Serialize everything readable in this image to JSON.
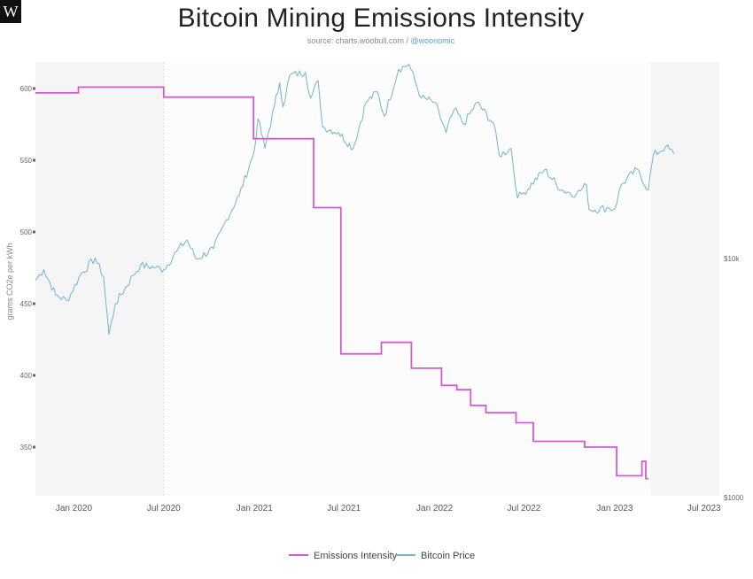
{
  "logo": {
    "text": "W"
  },
  "header": {
    "title": "Bitcoin Mining Emissions Intensity",
    "source_prefix": "source: charts.woobull.com /",
    "source_handle": "@woonomic"
  },
  "colors": {
    "emissions": "#d35bd1",
    "price": "#6fb6cc",
    "grid": "#eeeeee",
    "shade": "#f5f5f5"
  },
  "chart_data": {
    "type": "line",
    "title": "Bitcoin Mining Emissions Intensity",
    "ylabel": "grams CO2e per kWh",
    "ylim": [
      325,
      610
    ],
    "yticks": [
      350,
      400,
      450,
      500,
      550,
      600
    ],
    "y2ticks": [
      "$10k",
      "$1000"
    ],
    "x_range": [
      "2019-10-15",
      "2023-08-01"
    ],
    "x_ticks": [
      {
        "date": "2020-01-01",
        "label": "Jan 2020"
      },
      {
        "date": "2020-07-01",
        "label": "Jul 2020"
      },
      {
        "date": "2021-01-01",
        "label": "Jan 2021"
      },
      {
        "date": "2021-07-01",
        "label": "Jul 2021"
      },
      {
        "date": "2022-01-01",
        "label": "Jan 2022"
      },
      {
        "date": "2022-07-01",
        "label": "Jul 2022"
      },
      {
        "date": "2023-01-01",
        "label": "Jan 2023"
      },
      {
        "date": "2023-07-01",
        "label": "Jul 2023"
      }
    ],
    "grid": false,
    "legend": "bottom-center",
    "series": [
      {
        "name": "Emissions Intensity",
        "axis": "left",
        "step": true,
        "points": [
          [
            "2019-10-15",
            597
          ],
          [
            "2020-01-10",
            601
          ],
          [
            "2020-07-01",
            594
          ],
          [
            "2020-12-30",
            565
          ],
          [
            "2021-05-01",
            517
          ],
          [
            "2021-06-25",
            415
          ],
          [
            "2021-09-15",
            423
          ],
          [
            "2021-11-15",
            405
          ],
          [
            "2022-01-15",
            393
          ],
          [
            "2022-02-15",
            390
          ],
          [
            "2022-03-15",
            379
          ],
          [
            "2022-04-15",
            374
          ],
          [
            "2022-06-15",
            367
          ],
          [
            "2022-07-20",
            354
          ],
          [
            "2022-11-01",
            350
          ],
          [
            "2023-01-05",
            330
          ],
          [
            "2023-02-25",
            340
          ],
          [
            "2023-03-05",
            328
          ],
          [
            "2023-03-10",
            328
          ]
        ]
      },
      {
        "name": "Bitcoin Price",
        "axis": "right",
        "log_scale": true,
        "points": [
          [
            "2019-10-15",
            8300
          ],
          [
            "2019-11-01",
            9200
          ],
          [
            "2019-11-25",
            7200
          ],
          [
            "2019-12-18",
            6800
          ],
          [
            "2020-01-15",
            8800
          ],
          [
            "2020-02-13",
            10300
          ],
          [
            "2020-03-01",
            8600
          ],
          [
            "2020-03-12",
            4900
          ],
          [
            "2020-03-25",
            6600
          ],
          [
            "2020-04-30",
            8700
          ],
          [
            "2020-05-15",
            9600
          ],
          [
            "2020-06-15",
            9400
          ],
          [
            "2020-07-01",
            9200
          ],
          [
            "2020-07-27",
            11000
          ],
          [
            "2020-08-17",
            12300
          ],
          [
            "2020-09-05",
            10200
          ],
          [
            "2020-10-10",
            11300
          ],
          [
            "2020-11-05",
            15000
          ],
          [
            "2020-12-01",
            19000
          ],
          [
            "2020-12-31",
            29000
          ],
          [
            "2021-01-08",
            40000
          ],
          [
            "2021-01-22",
            30000
          ],
          [
            "2021-02-10",
            45000
          ],
          [
            "2021-02-21",
            57000
          ],
          [
            "2021-02-28",
            45000
          ],
          [
            "2021-03-13",
            61000
          ],
          [
            "2021-04-14",
            63000
          ],
          [
            "2021-04-25",
            49000
          ],
          [
            "2021-05-10",
            58000
          ],
          [
            "2021-05-19",
            37000
          ],
          [
            "2021-06-20",
            35000
          ],
          [
            "2021-07-20",
            30000
          ],
          [
            "2021-08-15",
            47000
          ],
          [
            "2021-09-07",
            52000
          ],
          [
            "2021-09-21",
            41000
          ],
          [
            "2021-10-20",
            65000
          ],
          [
            "2021-11-10",
            68000
          ],
          [
            "2021-12-05",
            49000
          ],
          [
            "2022-01-01",
            47000
          ],
          [
            "2022-01-24",
            35000
          ],
          [
            "2022-02-10",
            44000
          ],
          [
            "2022-03-01",
            38000
          ],
          [
            "2022-03-28",
            47000
          ],
          [
            "2022-05-01",
            38000
          ],
          [
            "2022-05-12",
            28000
          ],
          [
            "2022-06-05",
            30000
          ],
          [
            "2022-06-18",
            18500
          ],
          [
            "2022-07-01",
            19500
          ],
          [
            "2022-08-12",
            24400
          ],
          [
            "2022-09-15",
            20000
          ],
          [
            "2022-10-15",
            19200
          ],
          [
            "2022-11-05",
            21000
          ],
          [
            "2022-11-10",
            16500
          ],
          [
            "2022-12-20",
            16800
          ],
          [
            "2023-01-01",
            16600
          ],
          [
            "2023-01-14",
            21000
          ],
          [
            "2023-02-15",
            24500
          ],
          [
            "2023-03-10",
            20000
          ],
          [
            "2023-03-20",
            28000
          ],
          [
            "2023-04-14",
            30500
          ],
          [
            "2023-05-01",
            28500
          ]
        ]
      }
    ]
  }
}
